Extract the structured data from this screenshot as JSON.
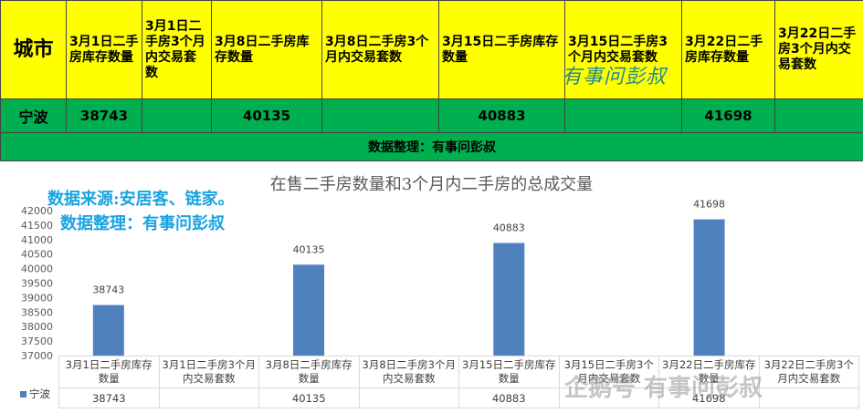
{
  "table": {
    "city_header": "城市",
    "headers": [
      "3月1日二手房库存数量",
      "3月1日二手房3个月内交易套数",
      "3月8日二手房库存数量",
      "3月8日二手房3个月内交易套数",
      "3月15日二手房库存数量",
      "3月15日二手房3个月内交易套数",
      "3月22日二手房库存数量",
      "3月22日二手房3个月内交易套数"
    ],
    "row_name": "宁波",
    "row_values": [
      "38743",
      "",
      "40135",
      "",
      "40883",
      "",
      "41698",
      ""
    ],
    "note": "数据整理：有事问彭叔"
  },
  "watermark_top": "有事问彭叔",
  "source_lines": [
    "数据来源:安居客、链家。",
    "数据整理：有事问彭叔"
  ],
  "watermark_bottom": "企鹅号 有事问彭叔",
  "colors": {
    "header_bg": "#ffff00",
    "row_bg": "#00b050",
    "bar": "#4f81bd",
    "source_text": "#1aa3e0"
  },
  "chart_data": {
    "type": "bar",
    "title": "在售二手房数量和3个月内二手房的总成交量",
    "categories": [
      "3月1日二手房库存数量",
      "3月1日二手房3个月内交易套数",
      "3月8日二手房库存数量",
      "3月8日二手房3个月内交易套数",
      "3月15日二手房库存数量",
      "3月15日二手房3个月内交易套数",
      "3月22日二手房库存数量",
      "3月22日二手房3个月内交易套数"
    ],
    "series": [
      {
        "name": "宁波",
        "values": [
          38743,
          null,
          40135,
          null,
          40883,
          null,
          41698,
          null
        ]
      }
    ],
    "ylim": [
      37000,
      42000
    ],
    "yticks": [
      37000,
      37500,
      38000,
      38500,
      39000,
      39500,
      40000,
      40500,
      41000,
      41500,
      42000
    ],
    "legend": "left",
    "data_table": true
  }
}
